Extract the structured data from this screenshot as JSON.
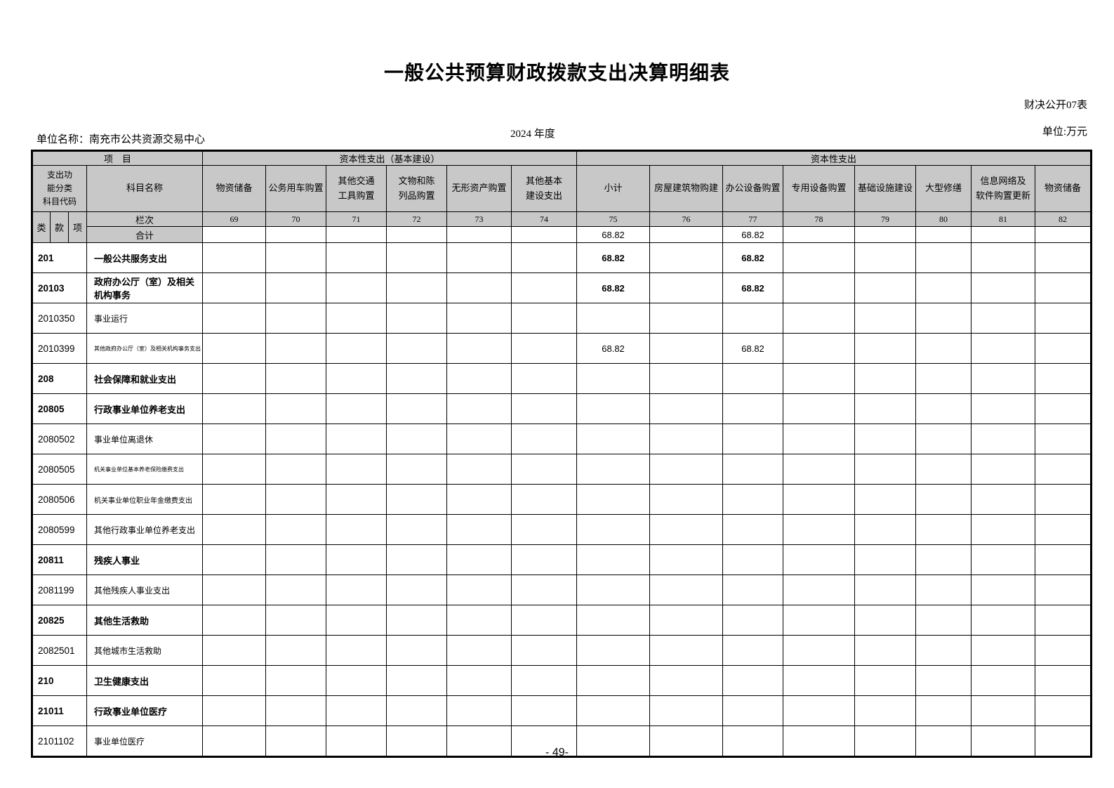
{
  "page": {
    "title": "一般公共预算财政拨款支出决算明细表",
    "doc_code": "财决公开07表",
    "unit_name": "单位名称：南充市公共资源交易中心",
    "year": "2024 年度",
    "unit": "单位:万元",
    "page_number": "- 49-"
  },
  "table": {
    "header": {
      "project_label": "项　目",
      "group_basic": "资本性支出（基本建设）",
      "group_capital": "资本性支出",
      "code_label": "支出功\n能分类\n科目代码",
      "subject_label": "科目名称",
      "class_labels": [
        "类",
        "款",
        "项"
      ],
      "lanci_label": "栏次",
      "total_label": "合计",
      "columns": [
        "物资储备",
        "公务用车购置",
        "其他交通\n工具购置",
        "文物和陈\n列品购置",
        "无形资产购置",
        "其他基本\n建设支出",
        "小计",
        "房屋建筑物购建",
        "办公设备购置",
        "专用设备购置",
        "基础设施建设",
        "大型修缮",
        "信息网络及\n软件购置更新",
        "物资储备"
      ],
      "column_numbers": [
        "69",
        "70",
        "71",
        "72",
        "73",
        "74",
        "75",
        "76",
        "77",
        "78",
        "79",
        "80",
        "81",
        "82"
      ]
    },
    "total_row": {
      "values": {
        "c75": "68.82",
        "c77": "68.82"
      }
    },
    "rows": [
      {
        "code": "201",
        "name": "一般公共服务支出",
        "bold": true,
        "values": {
          "c75": "68.82",
          "c77": "68.82"
        }
      },
      {
        "code": "20103",
        "name": "政府办公厅（室）及相关机构事务",
        "bold": true,
        "name_size": "small-bold",
        "values": {
          "c75": "68.82",
          "c77": "68.82"
        }
      },
      {
        "code": "2010350",
        "name": "事业运行"
      },
      {
        "code": "2010399",
        "name": "其他政府办公厅（室）及相关机构事务支出",
        "name_size": "tiny",
        "values": {
          "c75": "68.82",
          "c77": "68.82"
        }
      },
      {
        "code": "208",
        "name": "社会保障和就业支出",
        "bold": true
      },
      {
        "code": "20805",
        "name": "行政事业单位养老支出",
        "bold": true
      },
      {
        "code": "2080502",
        "name": "事业单位离退休"
      },
      {
        "code": "2080505",
        "name": "机关事业单位基本养老保险缴费支出",
        "name_size": "tiny"
      },
      {
        "code": "2080506",
        "name": "机关事业单位职业年金缴费支出",
        "name_size": "small"
      },
      {
        "code": "2080599",
        "name": "其他行政事业单位养老支出"
      },
      {
        "code": "20811",
        "name": "残疾人事业",
        "bold": true
      },
      {
        "code": "2081199",
        "name": "其他残疾人事业支出"
      },
      {
        "code": "20825",
        "name": "其他生活救助",
        "bold": true
      },
      {
        "code": "2082501",
        "name": "其他城市生活救助"
      },
      {
        "code": "210",
        "name": "卫生健康支出",
        "bold": true
      },
      {
        "code": "21011",
        "name": "行政事业单位医疗",
        "bold": true
      },
      {
        "code": "2101102",
        "name": "事业单位医疗"
      }
    ]
  }
}
